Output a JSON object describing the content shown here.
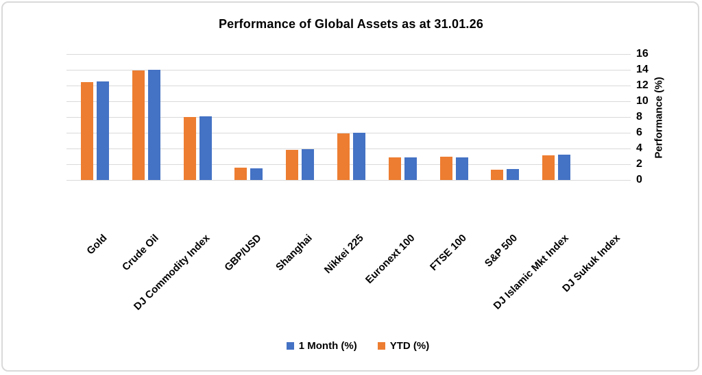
{
  "chart_data": {
    "type": "bar",
    "title": "Performance of Global Assets as at 31.01.26",
    "categories": [
      "Gold",
      "Crude Oil",
      "DJ Commodity Index",
      "GBP/USD",
      "Shanghai",
      "Nikkei 225",
      "Euronext 100",
      "FTSE 100",
      "S&P 500",
      "DJ Islamic Mkt Index",
      "DJ Sukuk Index"
    ],
    "series": [
      {
        "name": "1 Month (%)",
        "color": "#4472C4",
        "values": [
          12.5,
          14.0,
          8.1,
          1.5,
          3.9,
          6.0,
          2.9,
          2.9,
          1.4,
          3.2,
          0
        ]
      },
      {
        "name": "YTD (%)",
        "color": "#ED7D31",
        "values": [
          12.4,
          13.9,
          8.0,
          1.6,
          3.8,
          5.9,
          2.9,
          3.0,
          1.3,
          3.1,
          0
        ]
      }
    ],
    "bars_left_to_right": [
      "YTD (%)",
      "1 Month (%)"
    ],
    "xlabel": "",
    "ylabel": "Performance (%)",
    "ylim": [
      0,
      16
    ],
    "yticks": [
      0,
      2,
      4,
      6,
      8,
      10,
      12,
      14,
      16
    ],
    "y_axis_side": "right",
    "category_label_rotation_deg": 45,
    "grid": true,
    "legend_position": "bottom"
  },
  "colors": {
    "series_blue": "#4472C4",
    "series_orange": "#ED7D31",
    "gridline": "#D9D9D9",
    "frame_border": "#D9D9D9",
    "text": "#000000"
  }
}
